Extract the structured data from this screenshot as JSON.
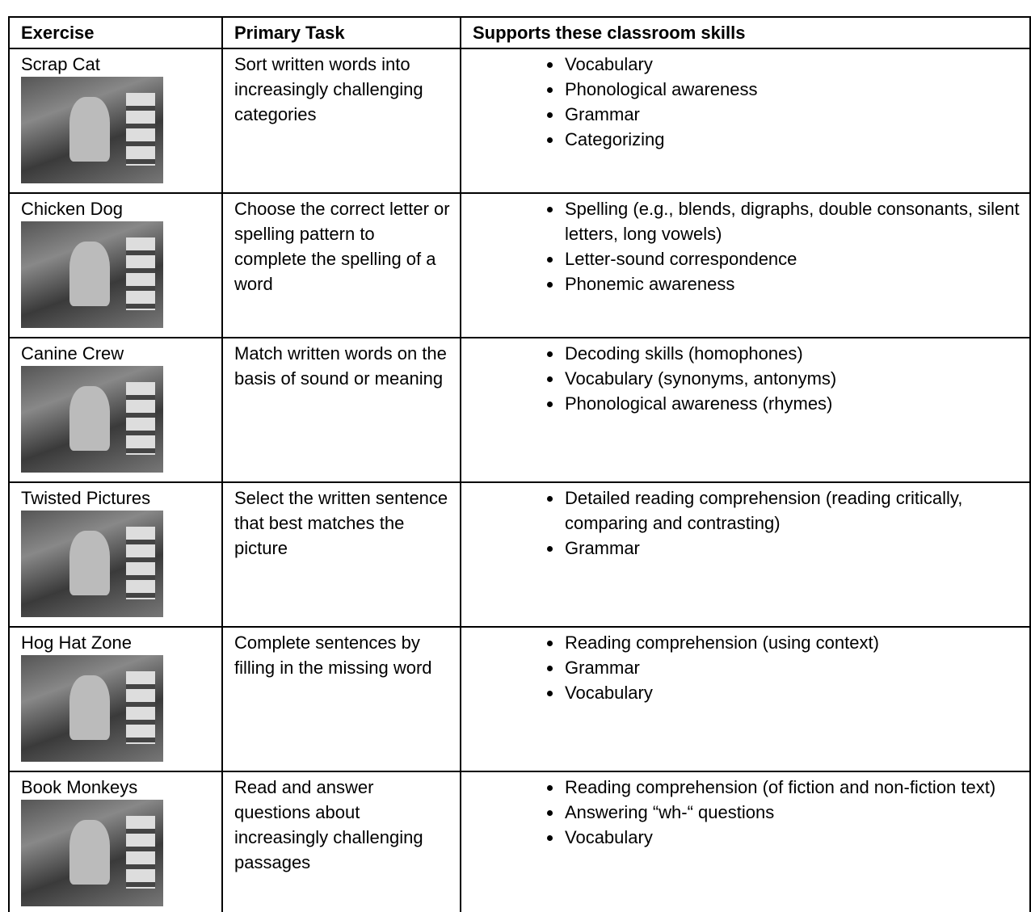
{
  "table": {
    "header": [
      "Exercise",
      "Primary Task",
      "Supports these classroom skills"
    ],
    "rows": [
      {
        "exercise": "Scrap Cat",
        "task": "Sort written words into increasingly challenging categories",
        "skills": [
          "Vocabulary",
          "Phonological awareness",
          "Grammar",
          "Categorizing"
        ]
      },
      {
        "exercise": "Chicken Dog",
        "task": "Choose the correct letter or spelling pattern to complete the spelling of a word",
        "skills": [
          "Spelling (e.g., blends, digraphs, double consonants, silent letters, long vowels)",
          "Letter-sound correspondence",
          "Phonemic awareness"
        ]
      },
      {
        "exercise": "Canine Crew",
        "task": "Match written words on the basis of sound or meaning",
        "skills": [
          "Decoding skills (homophones)",
          "Vocabulary (synonyms, antonyms)",
          "Phonological awareness (rhymes)"
        ]
      },
      {
        "exercise": "Twisted Pictures",
        "task": "Select the written sentence that best matches the picture",
        "skills": [
          "Detailed reading comprehension (reading critically, comparing and contrasting)",
          "Grammar"
        ]
      },
      {
        "exercise": "Hog Hat Zone",
        "task": "Complete sentences by filling in the missing word",
        "skills": [
          "Reading comprehension (using context)",
          "Grammar",
          "Vocabulary"
        ]
      },
      {
        "exercise": "Book Monkeys",
        "task": "Read and answer questions about increasingly challenging passages",
        "skills": [
          "Reading comprehension (of fiction and non-fiction text)",
          "Answering “wh-“ questions",
          "Vocabulary"
        ]
      }
    ]
  }
}
